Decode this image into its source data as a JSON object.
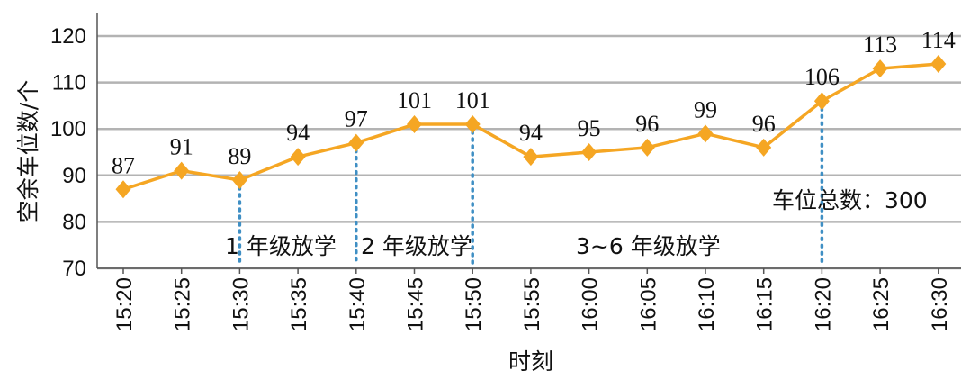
{
  "chart_data": {
    "type": "line",
    "title": "",
    "xlabel": "时刻",
    "ylabel": "空余车位数/个",
    "categories": [
      "15:20",
      "15:25",
      "15:30",
      "15:35",
      "15:40",
      "15:45",
      "15:50",
      "15:55",
      "16:00",
      "16:05",
      "16:10",
      "16:15",
      "16:20",
      "16:25",
      "16:30"
    ],
    "series": [
      {
        "values": [
          87,
          91,
          89,
          94,
          97,
          101,
          101,
          94,
          95,
          96,
          99,
          96,
          106,
          113,
          114
        ]
      }
    ],
    "data_labels": [
      "87",
      "91",
      "89",
      "94",
      "97",
      "101",
      "101",
      "94",
      "95",
      "96",
      "99",
      "96",
      "106",
      "113",
      "114"
    ],
    "yticks": [
      70,
      80,
      90,
      100,
      110,
      120
    ],
    "ylim": [
      70,
      120
    ],
    "grid": true,
    "colors": {
      "line": "#f5a623",
      "marker": "#f5a623",
      "grid": "#b3b3b3",
      "dotted": "#3f8fc4"
    },
    "markers": [
      {
        "at": "15:30",
        "label": "1 年级放学"
      },
      {
        "at": "15:40",
        "label": "2 年级放学"
      },
      {
        "at": "15:50",
        "label": "3~6 年级放学"
      },
      {
        "at": "16:20",
        "label": ""
      }
    ],
    "note": "车位总数：300"
  }
}
